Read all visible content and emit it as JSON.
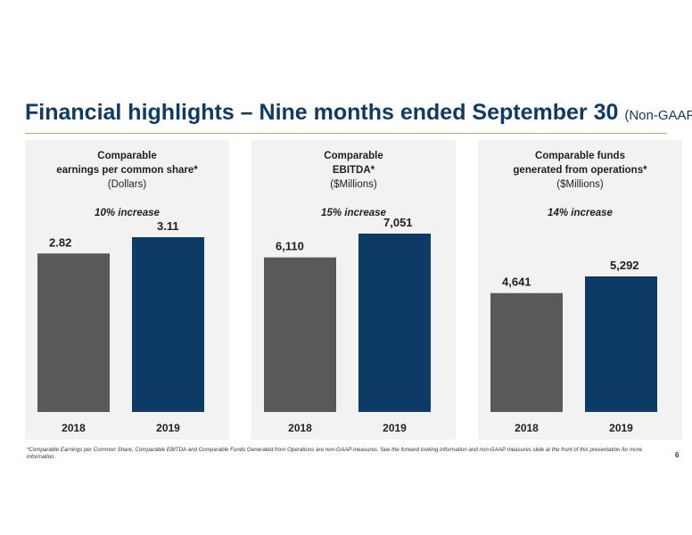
{
  "title": "Financial highlights – Nine months ended September 30",
  "title_suffix": "(Non-GAAP)",
  "footnote": "*Comparable Earnings per Common Share, Comparable EBITDA and Comparable Funds Generated from Operations are non-GAAP measures.  See the forward looking information and non-GAAP measures slide at the front of this presentation for more information.",
  "page_number": "6",
  "colors": {
    "bar_2018": "#58595b",
    "bar_2019": "#0e3a66",
    "title": "#0e3a66",
    "panel_bg": "#f2f2f2"
  },
  "chart_data": [
    {
      "type": "bar",
      "title": "Comparable earnings per common share*",
      "title_lines": [
        "Comparable",
        "earnings per common share*",
        "(Dollars)"
      ],
      "annotation": "10% increase",
      "categories": [
        "2018",
        "2019"
      ],
      "values": [
        2.82,
        3.11
      ],
      "value_labels": [
        "2.82",
        "3.11"
      ],
      "ymax": 3.11,
      "top_frac": 0.0
    },
    {
      "type": "bar",
      "title": "Comparable EBITDA*",
      "title_lines": [
        "Comparable",
        "EBITDA*",
        "($Millions)"
      ],
      "annotation": "15% increase",
      "categories": [
        "2018",
        "2019"
      ],
      "values": [
        6110,
        7051
      ],
      "value_labels": [
        "6,110",
        "7,051"
      ],
      "ymax": 7051,
      "top_frac": 0.0
    },
    {
      "type": "bar",
      "title": "Comparable funds generated from operations*",
      "title_lines": [
        "Comparable funds",
        "generated from operations*",
        "($Millions)"
      ],
      "annotation": "14% increase",
      "categories": [
        "2018",
        "2019"
      ],
      "values": [
        4641,
        5292
      ],
      "value_labels": [
        "4,641",
        "5,292"
      ],
      "ymax": 7051,
      "top_frac": 0.0
    }
  ]
}
